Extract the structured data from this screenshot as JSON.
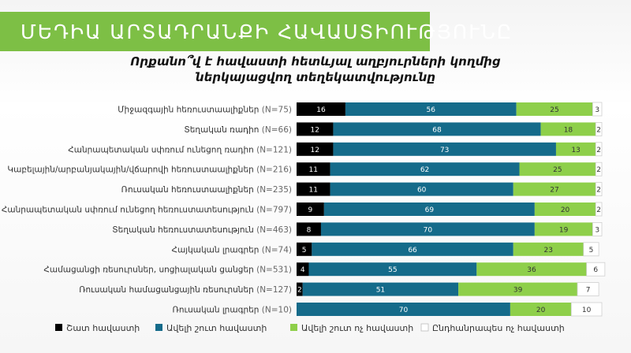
{
  "header": {
    "banner_title": "ՄԵԴԻԱ ԱՐՏԱԴՐԱՆՔԻ ՀԱՎԱՍՏԻՈՒԹՅՈՒՆԸ"
  },
  "chart_data": {
    "type": "bar",
    "orientation": "horizontal",
    "stacked": true,
    "title_line1": "Որքանո՞վ է հավաստի հետևյալ աղբյուրների կողմից",
    "title_line2": "ներկայացվող տեղեկատվությունը",
    "categories": [
      {
        "label": "Միջազգային հեռուստաալիքներ",
        "n": "(N=75)"
      },
      {
        "label": "Տեղական ռադիո",
        "n": "(N=66)"
      },
      {
        "label": "Հանրապետական սփռում ունեցող ռադիո",
        "n": "(N=121)"
      },
      {
        "label": "Կաբելային/արբանյակային/վճարովի հեռուստաալիքներ",
        "n": "(N=216)"
      },
      {
        "label": "Ռուսական հեռուստաալիքներ",
        "n": "(N=235)"
      },
      {
        "label": "Հանրապետական սփռում ունեցող  հեռուստատեսություն",
        "n": "(N=797)"
      },
      {
        "label": "Տեղական հեռուստատեսություն",
        "n": "(N=463)"
      },
      {
        "label": "Հայկական լրագրեր",
        "n": "(N=74)"
      },
      {
        "label": "Համացանցի ռեսուրսներ, սոցիալական ցանցեր",
        "n": "(N=531)"
      },
      {
        "label": "Ռուսական համացանցային ռեսուրսներ",
        "n": "(N=127)"
      },
      {
        "label": "Ռուսական լրագրեր",
        "n": "(N=10)"
      }
    ],
    "series": [
      {
        "name": "Շատ հավաստի",
        "color": "#000000",
        "text_color": "#ffffff",
        "values": [
          16,
          12,
          12,
          11,
          11,
          9,
          8,
          5,
          4,
          2,
          0
        ]
      },
      {
        "name": "Ավելի շուտ հավաստի",
        "color": "#156b8a",
        "text_color": "#ffffff",
        "values": [
          56,
          68,
          73,
          62,
          60,
          69,
          70,
          66,
          55,
          51,
          70
        ]
      },
      {
        "name": "Ավելի շուտ ոչ հավաստի",
        "color": "#8ecf4a",
        "text_color": "#333333",
        "values": [
          25,
          18,
          13,
          25,
          27,
          20,
          19,
          23,
          36,
          39,
          20
        ]
      },
      {
        "name": "Ընդհանրապես ոչ հավաստի",
        "color": "#ffffff",
        "text_color": "#333333",
        "values": [
          3,
          2,
          2,
          2,
          2,
          2,
          3,
          5,
          6,
          7,
          10
        ]
      }
    ],
    "xlim": [
      0,
      100
    ],
    "legend_position": "bottom"
  }
}
